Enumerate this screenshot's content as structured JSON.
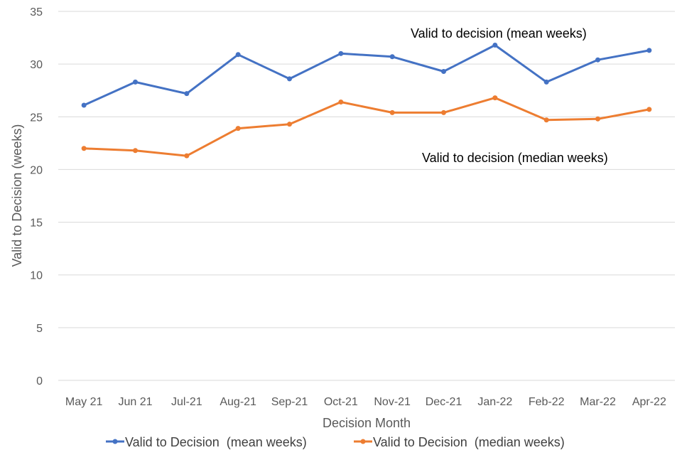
{
  "chart_data": {
    "type": "line",
    "categories": [
      "May 21",
      "Jun 21",
      "Jul-21",
      "Aug-21",
      "Sep-21",
      "Oct-21",
      "Nov-21",
      "Dec-21",
      "Jan-22",
      "Feb-22",
      "Mar-22",
      "Apr-22"
    ],
    "series": [
      {
        "name": "Valid to Decision  (mean weeks)",
        "color": "#4472c4",
        "values": [
          26.1,
          28.3,
          27.2,
          30.9,
          28.6,
          31.0,
          30.7,
          29.3,
          31.8,
          28.3,
          30.4,
          31.3
        ]
      },
      {
        "name": "Valid to Decision  (median weeks)",
        "color": "#ed7d31",
        "values": [
          22.0,
          21.8,
          21.3,
          23.9,
          24.3,
          26.4,
          25.4,
          25.4,
          26.8,
          24.7,
          24.8,
          25.7
        ]
      }
    ],
    "xlabel": "Decision Month",
    "ylabel": "Valid to Decision (weeks)",
    "ylim": [
      0,
      35
    ],
    "yticks": [
      0,
      5,
      10,
      15,
      20,
      25,
      30,
      35
    ],
    "grid": true,
    "legend": "bottom",
    "annotations": [
      "Valid to decision (mean weeks)",
      "Valid to decision (median weeks)"
    ]
  }
}
